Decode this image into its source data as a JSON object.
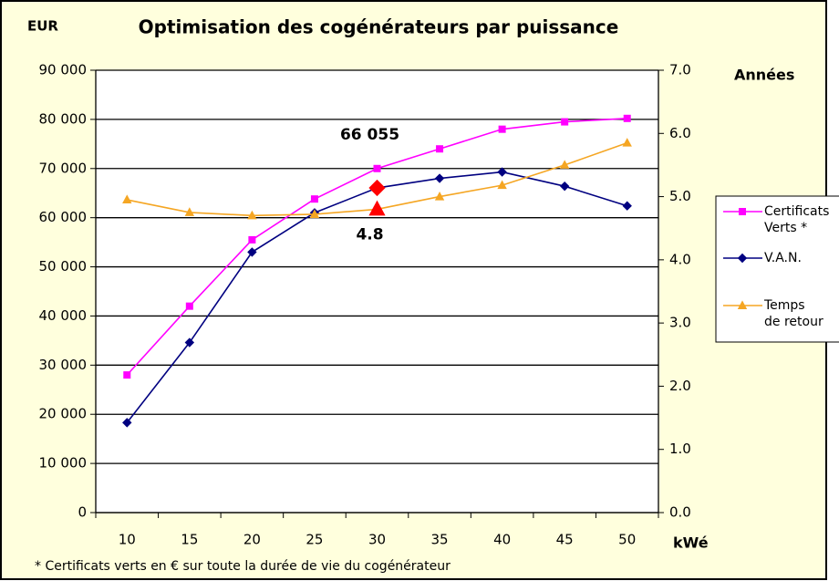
{
  "chart_data": {
    "type": "line",
    "title": "Optimisation des cogénérateurs par puissance",
    "y_label": "EUR",
    "y2_label": "Années",
    "x_label": "kWé",
    "footnote": "* Certificats verts en € sur toute la durée de vie du cogénérateur",
    "categories": [
      "10",
      "15",
      "20",
      "25",
      "30",
      "35",
      "40",
      "45",
      "50"
    ],
    "series": [
      {
        "name": "Certificats Verts *",
        "color": "#ff00ff",
        "marker": "square",
        "values": [
          28000,
          42000,
          55500,
          63800,
          70000,
          74000,
          78000,
          79500,
          80200
        ]
      },
      {
        "name": "V.A.N.",
        "color": "#000080",
        "marker": "diamond",
        "values": [
          18300,
          34600,
          53000,
          61000,
          66055,
          68000,
          69300,
          66400,
          62400
        ],
        "value_labels": [
          null,
          null,
          null,
          null,
          "66 055",
          null,
          null,
          null,
          null
        ],
        "highlight_color": "#ff0000"
      },
      {
        "name": "Temps de retour",
        "color": "#f5a623",
        "marker": "triangle",
        "axis": "y2",
        "values": [
          4.95,
          4.75,
          4.7,
          4.72,
          4.8,
          5.0,
          5.18,
          5.5,
          5.85
        ],
        "value_labels": [
          null,
          null,
          null,
          null,
          "4.8",
          null,
          null,
          null,
          null
        ],
        "highlight_color": "#ff0000"
      }
    ],
    "ylim": [
      0,
      90000
    ],
    "yticks": [
      0,
      {
        "value": 10000,
        "label": "10 000"
      },
      {
        "value": 20000,
        "label": "20 000"
      },
      {
        "value": 30000,
        "label": "30 000"
      },
      {
        "value": 40000,
        "label": "40 000"
      },
      {
        "value": 50000,
        "label": "50 000"
      },
      {
        "value": 60000,
        "label": "60 000"
      },
      {
        "value": 70000,
        "label": "70 000"
      },
      {
        "value": 80000,
        "label": "80 000"
      },
      {
        "value": 90000,
        "label": "90 000"
      }
    ],
    "y2lim": [
      0,
      7
    ],
    "y2ticks": [
      {
        "value": 0,
        "label": "0.0"
      },
      {
        "value": 1,
        "label": "1.0"
      },
      {
        "value": 2,
        "label": "2.0"
      },
      {
        "value": 3,
        "label": "3.0"
      },
      {
        "value": 4,
        "label": "4.0"
      },
      {
        "value": 5,
        "label": "5.0"
      },
      {
        "value": 6,
        "label": "6.0"
      },
      {
        "value": 7,
        "label": "7.0"
      }
    ],
    "grid": true
  }
}
